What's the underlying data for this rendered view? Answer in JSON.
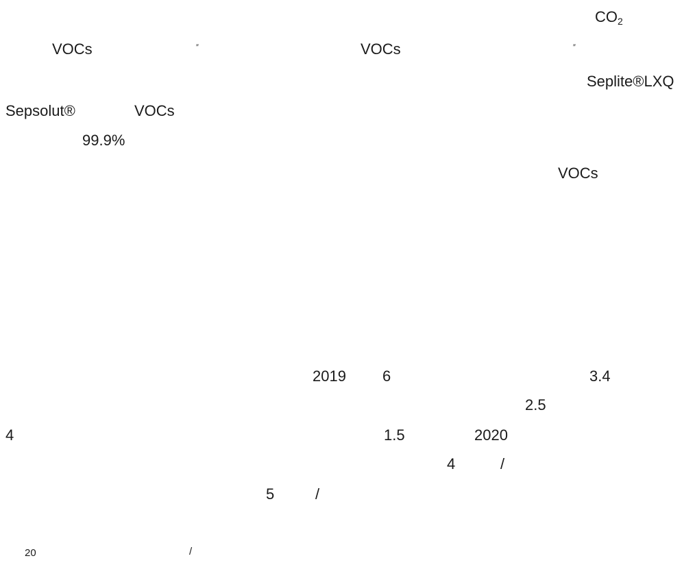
{
  "colors": {
    "background": "#ffffff",
    "text": "#1a1a1a"
  },
  "paragraph1": {
    "co2": {
      "base": "CO",
      "sub": "2"
    },
    "vocs_a": "VOCs",
    "quote_a": "″",
    "vocs_b": "VOCs",
    "quote_b": "″",
    "seplite": "Seplite®LXQ",
    "sepsolut": "Sepsolut®",
    "vocs_c": "VOCs",
    "percent": "99.9%",
    "vocs_d": "VOCs"
  },
  "paragraph2": {
    "year_2019": "2019",
    "num_6": "6",
    "num_3_4": "3.4",
    "num_2_5": "2.5",
    "num_4": "4",
    "num_1_5": "1.5",
    "year_2020": "2020",
    "num_4b": "4",
    "slash_a": "/",
    "num_5": "5",
    "slash_b": "/"
  },
  "footer": {
    "num_20": "20",
    "slash": "/"
  }
}
